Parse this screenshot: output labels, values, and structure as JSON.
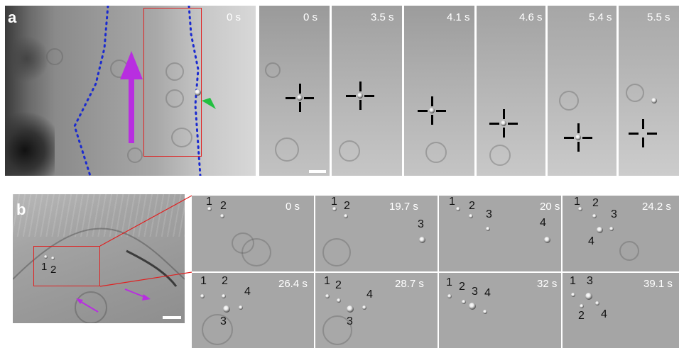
{
  "panel_a": {
    "letter": "a",
    "overview_time": "0 s",
    "frames": [
      {
        "time": "0 s"
      },
      {
        "time": "3.5 s"
      },
      {
        "time": "4.1 s"
      },
      {
        "time": "4.6 s"
      },
      {
        "time": "5.4 s"
      },
      {
        "time": "5.5 s"
      }
    ]
  },
  "panel_b": {
    "letter": "b",
    "overview_labels": [
      "1",
      "2"
    ],
    "frames": [
      {
        "time": "0 s",
        "labels": [
          "1",
          "2"
        ]
      },
      {
        "time": "19.7 s",
        "labels": [
          "1",
          "2",
          "3"
        ]
      },
      {
        "time": "20 s",
        "labels": [
          "1",
          "2",
          "3",
          "4"
        ]
      },
      {
        "time": "24.2 s",
        "labels": [
          "1",
          "2",
          "3",
          "4"
        ]
      },
      {
        "time": "26.4 s",
        "labels": [
          "1",
          "2",
          "4",
          "3"
        ]
      },
      {
        "time": "28.7 s",
        "labels": [
          "1",
          "2",
          "4",
          "3"
        ]
      },
      {
        "time": "32 s",
        "labels": [
          "1",
          "2",
          "3",
          "4"
        ]
      },
      {
        "time": "39.1 s",
        "labels": [
          "1",
          "3",
          "2",
          "4"
        ]
      }
    ]
  },
  "colors": {
    "outline_box": "#e02020",
    "dotted_boundary": "#1a2ad0",
    "arrow": "#b82ee0",
    "pointer": "#22c040"
  }
}
